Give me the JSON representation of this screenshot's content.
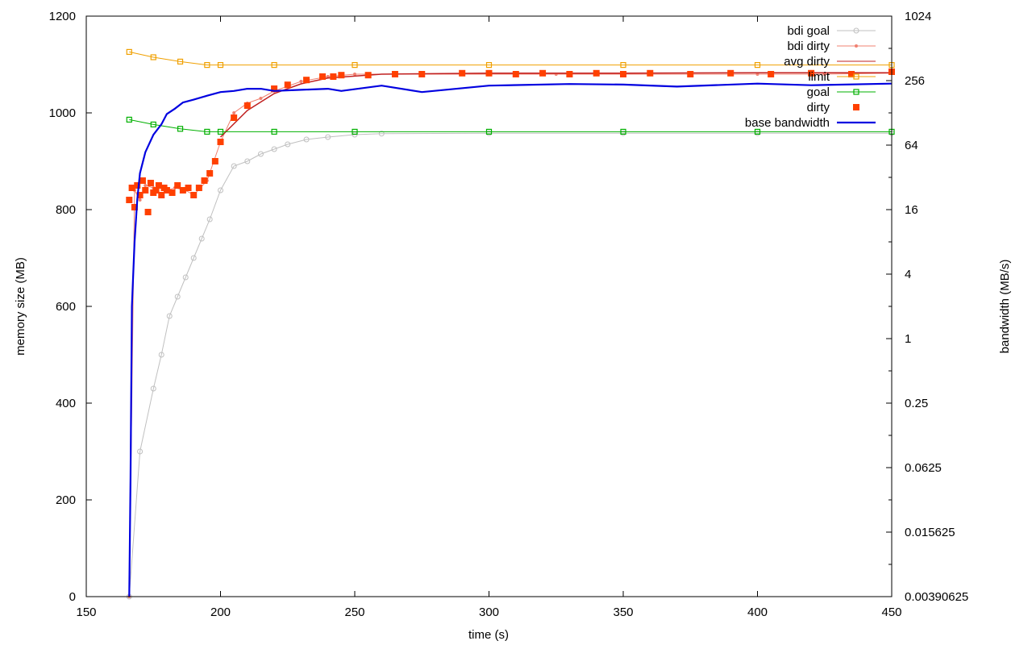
{
  "chart_data": {
    "type": "line",
    "xlabel": "time (s)",
    "ylabel": "memory size (MB)",
    "y2label": "bandwidth (MB/s)",
    "xlim": [
      150,
      450
    ],
    "ylim": [
      0,
      1200
    ],
    "y2lim": [
      0.00390625,
      1024
    ],
    "y2scale": "log2",
    "x_ticks": [
      "150",
      "200",
      "250",
      "300",
      "350",
      "400",
      "450"
    ],
    "y_ticks": [
      "0",
      "200",
      "400",
      "600",
      "800",
      "1000",
      "1200"
    ],
    "y2_ticks": [
      "0.00390625",
      "0.015625",
      "0.0625",
      "0.25",
      "1",
      "4",
      "16",
      "64",
      "256",
      "1024"
    ],
    "grid": false,
    "legend_position": "top-right",
    "series": [
      {
        "name": "bdi goal",
        "color": "#c0c0c0",
        "style": "line-circle",
        "axis": "y",
        "x": [
          166,
          170,
          175,
          178,
          181,
          184,
          187,
          190,
          193,
          196,
          200,
          205,
          210,
          215,
          220,
          225,
          232,
          240,
          250,
          260,
          300,
          350,
          400,
          450
        ],
        "y": [
          0,
          300,
          430,
          500,
          580,
          620,
          660,
          700,
          740,
          780,
          840,
          890,
          900,
          915,
          925,
          935,
          945,
          950,
          955,
          957,
          958,
          958,
          958,
          958
        ]
      },
      {
        "name": "bdi dirty",
        "color": "#f08070",
        "style": "line-dot",
        "axis": "y",
        "x": [
          166,
          168,
          170,
          172,
          175,
          178,
          180,
          183,
          187,
          190,
          195,
          200,
          205,
          210,
          215,
          220,
          225,
          230,
          240,
          250,
          275,
          300,
          325,
          350,
          375,
          400,
          425,
          450
        ],
        "y": [
          0,
          840,
          820,
          850,
          845,
          830,
          840,
          845,
          840,
          830,
          860,
          940,
          1000,
          1020,
          1030,
          1045,
          1055,
          1065,
          1075,
          1080,
          1080,
          1080,
          1080,
          1080,
          1080,
          1080,
          1080,
          1082
        ]
      },
      {
        "name": "avg dirty",
        "color": "#c02020",
        "style": "line",
        "axis": "y",
        "x": [
          200,
          210,
          220,
          230,
          240,
          260,
          300,
          350,
          400,
          450
        ],
        "y": [
          950,
          1005,
          1040,
          1060,
          1072,
          1080,
          1082,
          1082,
          1083,
          1083
        ]
      },
      {
        "name": "limit",
        "color": "#f0a000",
        "style": "line-square",
        "axis": "y",
        "x": [
          166,
          175,
          185,
          195,
          200,
          220,
          250,
          300,
          350,
          400,
          450
        ],
        "y": [
          1126,
          1115,
          1106,
          1099,
          1099,
          1099,
          1099,
          1099,
          1099,
          1099,
          1099
        ]
      },
      {
        "name": "goal",
        "color": "#00b000",
        "style": "line-square",
        "axis": "y",
        "x": [
          166,
          175,
          185,
          195,
          200,
          220,
          250,
          300,
          350,
          400,
          450
        ],
        "y": [
          986,
          976,
          967,
          961,
          961,
          961,
          961,
          961,
          961,
          961,
          961
        ]
      },
      {
        "name": "dirty",
        "color": "#ff4000",
        "style": "square",
        "axis": "y",
        "x": [
          166,
          167,
          168,
          169,
          170,
          171,
          172,
          173,
          174,
          175,
          176,
          177,
          178,
          179,
          180,
          182,
          184,
          186,
          188,
          190,
          192,
          194,
          196,
          198,
          200,
          205,
          210,
          220,
          225,
          232,
          238,
          242,
          245,
          255,
          265,
          275,
          290,
          300,
          310,
          320,
          330,
          340,
          350,
          360,
          375,
          390,
          405,
          420,
          435,
          450
        ],
        "y": [
          820,
          845,
          805,
          850,
          830,
          860,
          840,
          795,
          855,
          835,
          840,
          850,
          830,
          845,
          840,
          835,
          850,
          840,
          845,
          830,
          845,
          860,
          875,
          900,
          940,
          990,
          1015,
          1050,
          1058,
          1068,
          1075,
          1075,
          1078,
          1078,
          1080,
          1080,
          1082,
          1082,
          1080,
          1082,
          1080,
          1082,
          1080,
          1082,
          1080,
          1082,
          1080,
          1082,
          1080,
          1085
        ]
      },
      {
        "name": "base bandwidth",
        "color": "#0000e0",
        "style": "line",
        "axis": "y2",
        "x": [
          166,
          166.5,
          167,
          168,
          169,
          170,
          172,
          175,
          178,
          180,
          183,
          186,
          190,
          195,
          200,
          205,
          210,
          215,
          220,
          230,
          240,
          245,
          260,
          275,
          300,
          330,
          350,
          370,
          400,
          420,
          450
        ],
        "y": [
          0.0039,
          0.05,
          2.0,
          8.0,
          20,
          35,
          55,
          80,
          100,
          125,
          140,
          160,
          170,
          185,
          200,
          205,
          215,
          215,
          205,
          210,
          215,
          205,
          230,
          200,
          230,
          238,
          235,
          225,
          240,
          232,
          240
        ]
      }
    ]
  }
}
